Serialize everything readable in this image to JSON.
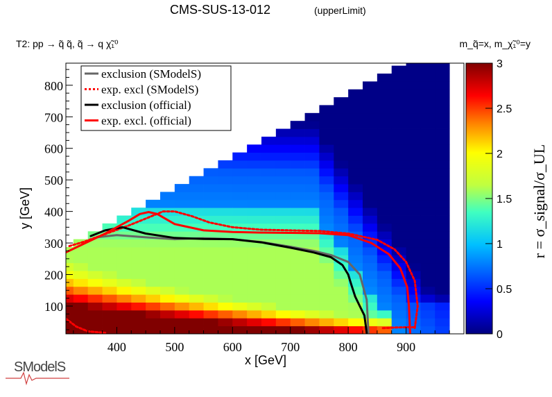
{
  "chart_data": {
    "type": "heatmap",
    "title": "CMS-SUS-13-012",
    "title_note": "(upperLimit)",
    "process_label": "T2: pp → q̃ q̃, q̃ → q χ̃₁⁰",
    "axis_mapping_label": "m_q̃=x, m_χ̃₁⁰=y",
    "xlabel": "x [GeV]",
    "ylabel": "y [GeV]",
    "zlabel": "r = σ_signal/σ_UL",
    "xlim": [
      312,
      1000
    ],
    "ylim": [
      12,
      870
    ],
    "zlim": [
      0,
      3
    ],
    "x_ticks": [
      400,
      500,
      600,
      700,
      800,
      900
    ],
    "y_ticks": [
      100,
      200,
      300,
      400,
      500,
      600,
      700,
      800
    ],
    "z_ticks": [
      0,
      0.5,
      1,
      1.5,
      2,
      2.5,
      3
    ],
    "legend_position": "top-left",
    "logo_text": "SModelS",
    "series": [
      {
        "name": "exclusion (SModelS)",
        "color": "#666666",
        "style": "solid",
        "x": [
          365,
          400,
          450,
          500,
          550,
          600,
          650,
          700,
          740,
          770,
          800,
          820,
          832,
          835
        ],
        "y": [
          318,
          325,
          318,
          312,
          315,
          312,
          303,
          288,
          275,
          262,
          240,
          200,
          120,
          15
        ]
      },
      {
        "name": "exp. excl (SModelS)",
        "color": "#ff0000",
        "style": "dotted",
        "x": [
          318,
          345,
          390,
          420,
          440,
          460,
          480,
          500,
          530,
          560,
          600,
          650,
          700,
          750,
          800,
          850,
          880,
          900,
          915,
          920,
          915
        ],
        "y": [
          290,
          305,
          335,
          355,
          370,
          385,
          400,
          400,
          385,
          365,
          350,
          342,
          340,
          338,
          330,
          310,
          280,
          240,
          180,
          100,
          30
        ]
      },
      {
        "name": "exclusion (official)",
        "color": "#000000",
        "style": "solid",
        "x": [
          355,
          380,
          410,
          450,
          500,
          550,
          600,
          650,
          700,
          740,
          770,
          790,
          800,
          805,
          812,
          820,
          828,
          832
        ],
        "y": [
          322,
          340,
          350,
          330,
          316,
          313,
          312,
          302,
          285,
          270,
          255,
          230,
          200,
          170,
          130,
          100,
          70,
          15
        ]
      },
      {
        "name": "exp. excl. (official)",
        "color": "#ff0000",
        "style": "solid",
        "x": [
          312,
          340,
          380,
          420,
          440,
          455,
          470,
          500,
          550,
          600,
          650,
          700,
          750,
          800,
          840,
          870,
          890,
          902,
          905,
          907
        ],
        "y": [
          270,
          295,
          330,
          370,
          392,
          398,
          392,
          360,
          340,
          335,
          333,
          332,
          331,
          325,
          300,
          265,
          220,
          160,
          100,
          15
        ]
      },
      {
        "name": "",
        "color": "#ff0000",
        "style": "dotted",
        "x": [
          312,
          330,
          350,
          380
        ],
        "y": [
          60,
          35,
          20,
          15
        ]
      },
      {
        "name": "",
        "color": "#ff0000",
        "style": "dotted",
        "x": [
          860,
          880,
          900,
          915
        ],
        "y": [
          30,
          32,
          33,
          33
        ]
      }
    ]
  }
}
